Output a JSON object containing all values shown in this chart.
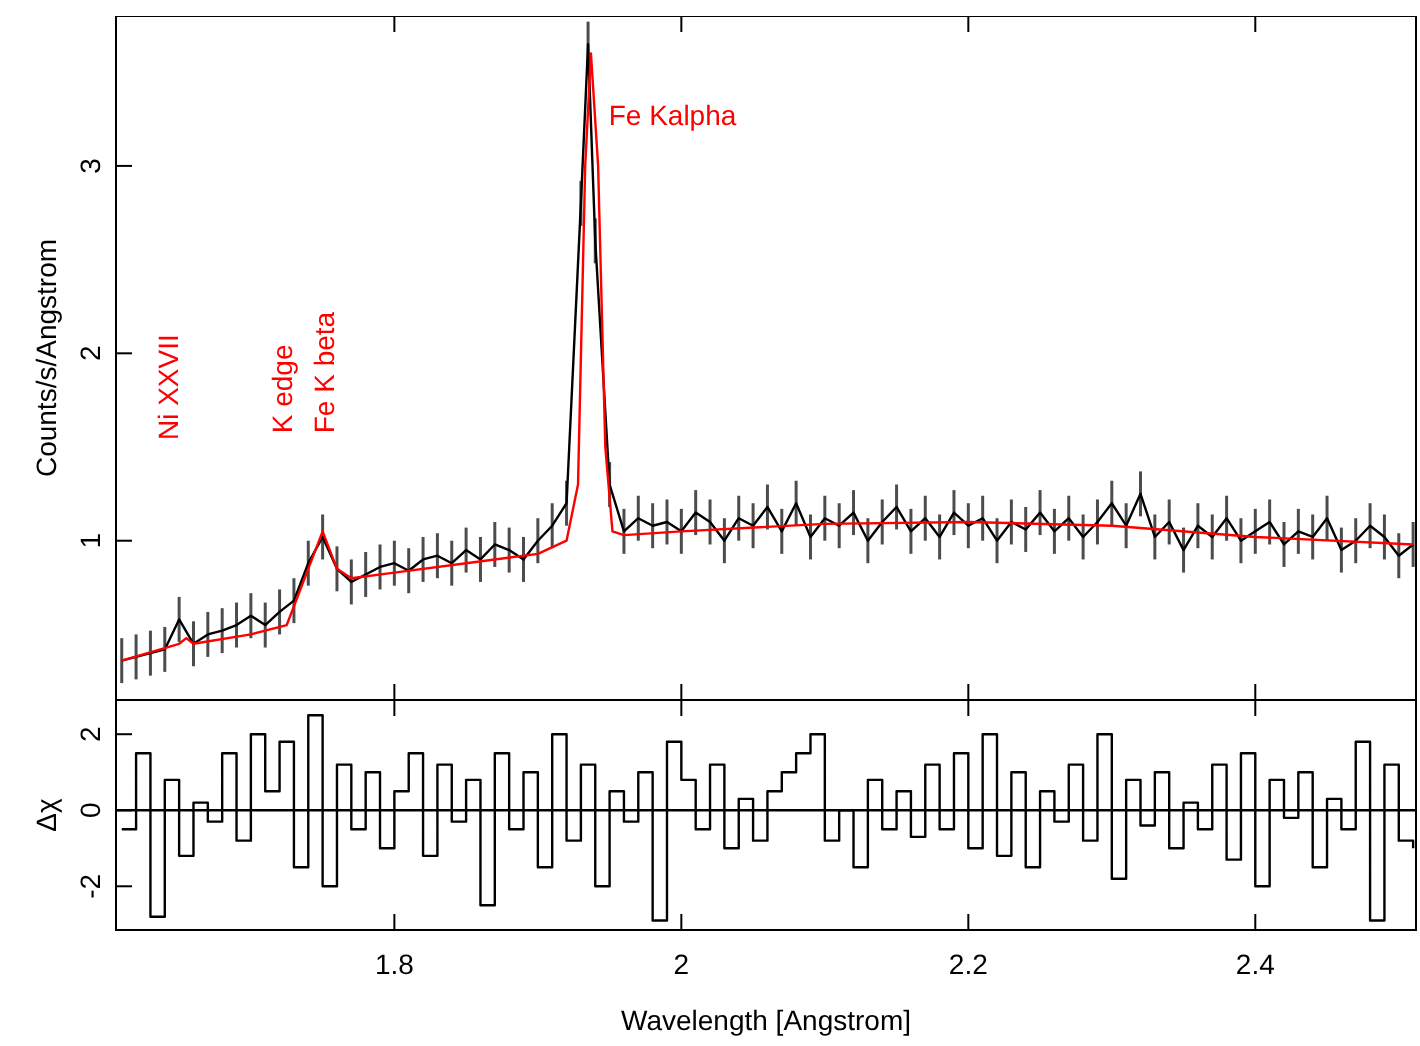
{
  "chart_data": [
    {
      "type": "line",
      "ylabel": "Counts/s/Angstrom",
      "xlim": [
        1.606,
        2.512
      ],
      "xticks": [
        1.8,
        2,
        2.2,
        2.4
      ],
      "ylim": [
        0.15,
        3.8
      ],
      "yticks": [
        1,
        2,
        3
      ],
      "tick_labels": "y",
      "annotations": [
        "Ni XXVII",
        "K edge",
        "Fe K beta",
        "Fe Kalpha"
      ],
      "series": [
        {
          "color": "#000000",
          "x": [
            1.61,
            1.62,
            1.63,
            1.64,
            1.65,
            1.66,
            1.67,
            1.68,
            1.69,
            1.7,
            1.71,
            1.72,
            1.73,
            1.74,
            1.75,
            1.76,
            1.77,
            1.78,
            1.79,
            1.8,
            1.81,
            1.82,
            1.83,
            1.84,
            1.85,
            1.86,
            1.87,
            1.88,
            1.89,
            1.9,
            1.91,
            1.92,
            1.93,
            1.935,
            1.94,
            1.95,
            1.96,
            1.97,
            1.98,
            1.99,
            2,
            2.01,
            2.02,
            2.03,
            2.04,
            2.05,
            2.06,
            2.07,
            2.08,
            2.09,
            2.1,
            2.11,
            2.12,
            2.13,
            2.14,
            2.15,
            2.16,
            2.17,
            2.18,
            2.19,
            2.2,
            2.21,
            2.22,
            2.23,
            2.24,
            2.25,
            2.26,
            2.27,
            2.28,
            2.29,
            2.3,
            2.31,
            2.32,
            2.33,
            2.34,
            2.35,
            2.36,
            2.37,
            2.38,
            2.39,
            2.4,
            2.41,
            2.42,
            2.43,
            2.44,
            2.45,
            2.46,
            2.47,
            2.48,
            2.49,
            2.5,
            2.51
          ],
          "values": [
            0.36,
            0.38,
            0.4,
            0.42,
            0.58,
            0.45,
            0.5,
            0.52,
            0.55,
            0.6,
            0.55,
            0.62,
            0.68,
            0.88,
            1.02,
            0.85,
            0.78,
            0.82,
            0.86,
            0.88,
            0.84,
            0.9,
            0.92,
            0.88,
            0.95,
            0.9,
            0.98,
            0.95,
            0.9,
            1,
            1.08,
            1.2,
            2.8,
            3.65,
            2.6,
            1.3,
            1.05,
            1.12,
            1.08,
            1.1,
            1.05,
            1.15,
            1.1,
            1,
            1.12,
            1.08,
            1.18,
            1.05,
            1.2,
            1.02,
            1.12,
            1.08,
            1.15,
            1,
            1.1,
            1.18,
            1.05,
            1.12,
            1.02,
            1.15,
            1.08,
            1.12,
            1,
            1.1,
            1.06,
            1.15,
            1.05,
            1.12,
            1.02,
            1.1,
            1.2,
            1.08,
            1.25,
            1.02,
            1.1,
            0.95,
            1.08,
            1.02,
            1.12,
            1,
            1.05,
            1.1,
            0.98,
            1.05,
            1.02,
            1.12,
            0.95,
            1,
            1.08,
            1.02,
            0.92,
            0.98
          ],
          "errors": [
            0.12,
            0.12,
            0.12,
            0.12,
            0.12,
            0.12,
            0.12,
            0.12,
            0.12,
            0.12,
            0.12,
            0.12,
            0.12,
            0.12,
            0.12,
            0.12,
            0.12,
            0.12,
            0.12,
            0.12,
            0.12,
            0.12,
            0.12,
            0.12,
            0.12,
            0.12,
            0.12,
            0.12,
            0.12,
            0.12,
            0.12,
            0.12,
            0.12,
            0.12,
            0.12,
            0.12,
            0.12,
            0.12,
            0.12,
            0.12,
            0.12,
            0.12,
            0.12,
            0.12,
            0.12,
            0.12,
            0.12,
            0.12,
            0.12,
            0.12,
            0.12,
            0.12,
            0.12,
            0.12,
            0.12,
            0.12,
            0.12,
            0.12,
            0.12,
            0.12,
            0.12,
            0.12,
            0.12,
            0.12,
            0.12,
            0.12,
            0.12,
            0.12,
            0.12,
            0.12,
            0.12,
            0.12,
            0.12,
            0.12,
            0.12,
            0.12,
            0.12,
            0.12,
            0.12,
            0.12,
            0.12,
            0.12,
            0.12,
            0.12,
            0.12,
            0.12,
            0.12,
            0.12,
            0.12,
            0.12,
            0.12,
            0.12
          ]
        },
        {
          "color": "#ff0000",
          "x": [
            1.61,
            1.65,
            1.655,
            1.66,
            1.7,
            1.725,
            1.74,
            1.75,
            1.76,
            1.77,
            1.8,
            1.85,
            1.9,
            1.92,
            1.928,
            1.933,
            1.937,
            1.942,
            1.947,
            1.952,
            1.96,
            2,
            2.1,
            2.2,
            2.3,
            2.4,
            2.51
          ],
          "values": [
            0.36,
            0.45,
            0.48,
            0.45,
            0.5,
            0.55,
            0.85,
            1.05,
            0.85,
            0.8,
            0.83,
            0.88,
            0.93,
            1,
            1.3,
            3,
            3.6,
            3,
            1.5,
            1.05,
            1.03,
            1.05,
            1.09,
            1.1,
            1.08,
            1.02,
            0.98
          ]
        }
      ]
    },
    {
      "type": "step",
      "ylabel": "Δχ",
      "xlabel": "Wavelength [Angstrom]",
      "xlim": [
        1.606,
        2.512
      ],
      "xticks": [
        1.8,
        2,
        2.2,
        2.4
      ],
      "ylim": [
        -3.15,
        2.9
      ],
      "yticks": [
        -2,
        0,
        2
      ],
      "ref_lines": [
        {
          "axis": "y",
          "value": 0,
          "color": "#000000"
        }
      ],
      "series": [
        {
          "color": "#000000",
          "x": [
            1.61,
            1.62,
            1.63,
            1.64,
            1.65,
            1.66,
            1.67,
            1.68,
            1.69,
            1.7,
            1.71,
            1.72,
            1.73,
            1.74,
            1.75,
            1.76,
            1.77,
            1.78,
            1.79,
            1.8,
            1.81,
            1.82,
            1.83,
            1.84,
            1.85,
            1.86,
            1.87,
            1.88,
            1.89,
            1.9,
            1.91,
            1.92,
            1.93,
            1.94,
            1.95,
            1.96,
            1.97,
            1.98,
            1.99,
            2,
            2.01,
            2.02,
            2.03,
            2.04,
            2.05,
            2.06,
            2.07,
            2.08,
            2.09,
            2.1,
            2.11,
            2.12,
            2.13,
            2.14,
            2.15,
            2.16,
            2.17,
            2.18,
            2.19,
            2.2,
            2.21,
            2.22,
            2.23,
            2.24,
            2.25,
            2.26,
            2.27,
            2.28,
            2.29,
            2.3,
            2.31,
            2.32,
            2.33,
            2.34,
            2.35,
            2.36,
            2.37,
            2.38,
            2.39,
            2.4,
            2.41,
            2.42,
            2.43,
            2.44,
            2.45,
            2.46,
            2.47,
            2.48,
            2.49,
            2.5,
            2.51
          ],
          "values": [
            -0.5,
            1.5,
            -2.8,
            0.8,
            -1.2,
            0.2,
            -0.3,
            1.5,
            -0.8,
            2,
            0.5,
            1.8,
            -1.5,
            2.5,
            -2,
            1.2,
            -0.5,
            1,
            -1,
            0.5,
            1.5,
            -1.2,
            1.2,
            -0.3,
            0.8,
            -2.5,
            1.5,
            -0.5,
            1,
            -1.5,
            2,
            -0.8,
            1.2,
            -2,
            0.5,
            -0.3,
            1,
            -2.9,
            1.8,
            0.8,
            -0.5,
            1.2,
            -1,
            0.3,
            -0.8,
            0.5,
            1,
            1.5,
            2,
            -0.8,
            0,
            -1.5,
            0.8,
            -0.5,
            0.5,
            -0.7,
            1.2,
            -0.5,
            1.5,
            -1,
            2,
            -1.2,
            1,
            -1.5,
            0.5,
            -0.3,
            1.2,
            -0.8,
            2,
            -1.8,
            0.8,
            -0.4,
            1,
            -1,
            0.2,
            -0.5,
            1.2,
            -1.3,
            1.5,
            -2,
            0.8,
            -0.2,
            1,
            -1.5,
            0.3,
            -0.5,
            1.8,
            -2.9,
            1.2,
            -0.8,
            -1
          ]
        }
      ]
    }
  ]
}
